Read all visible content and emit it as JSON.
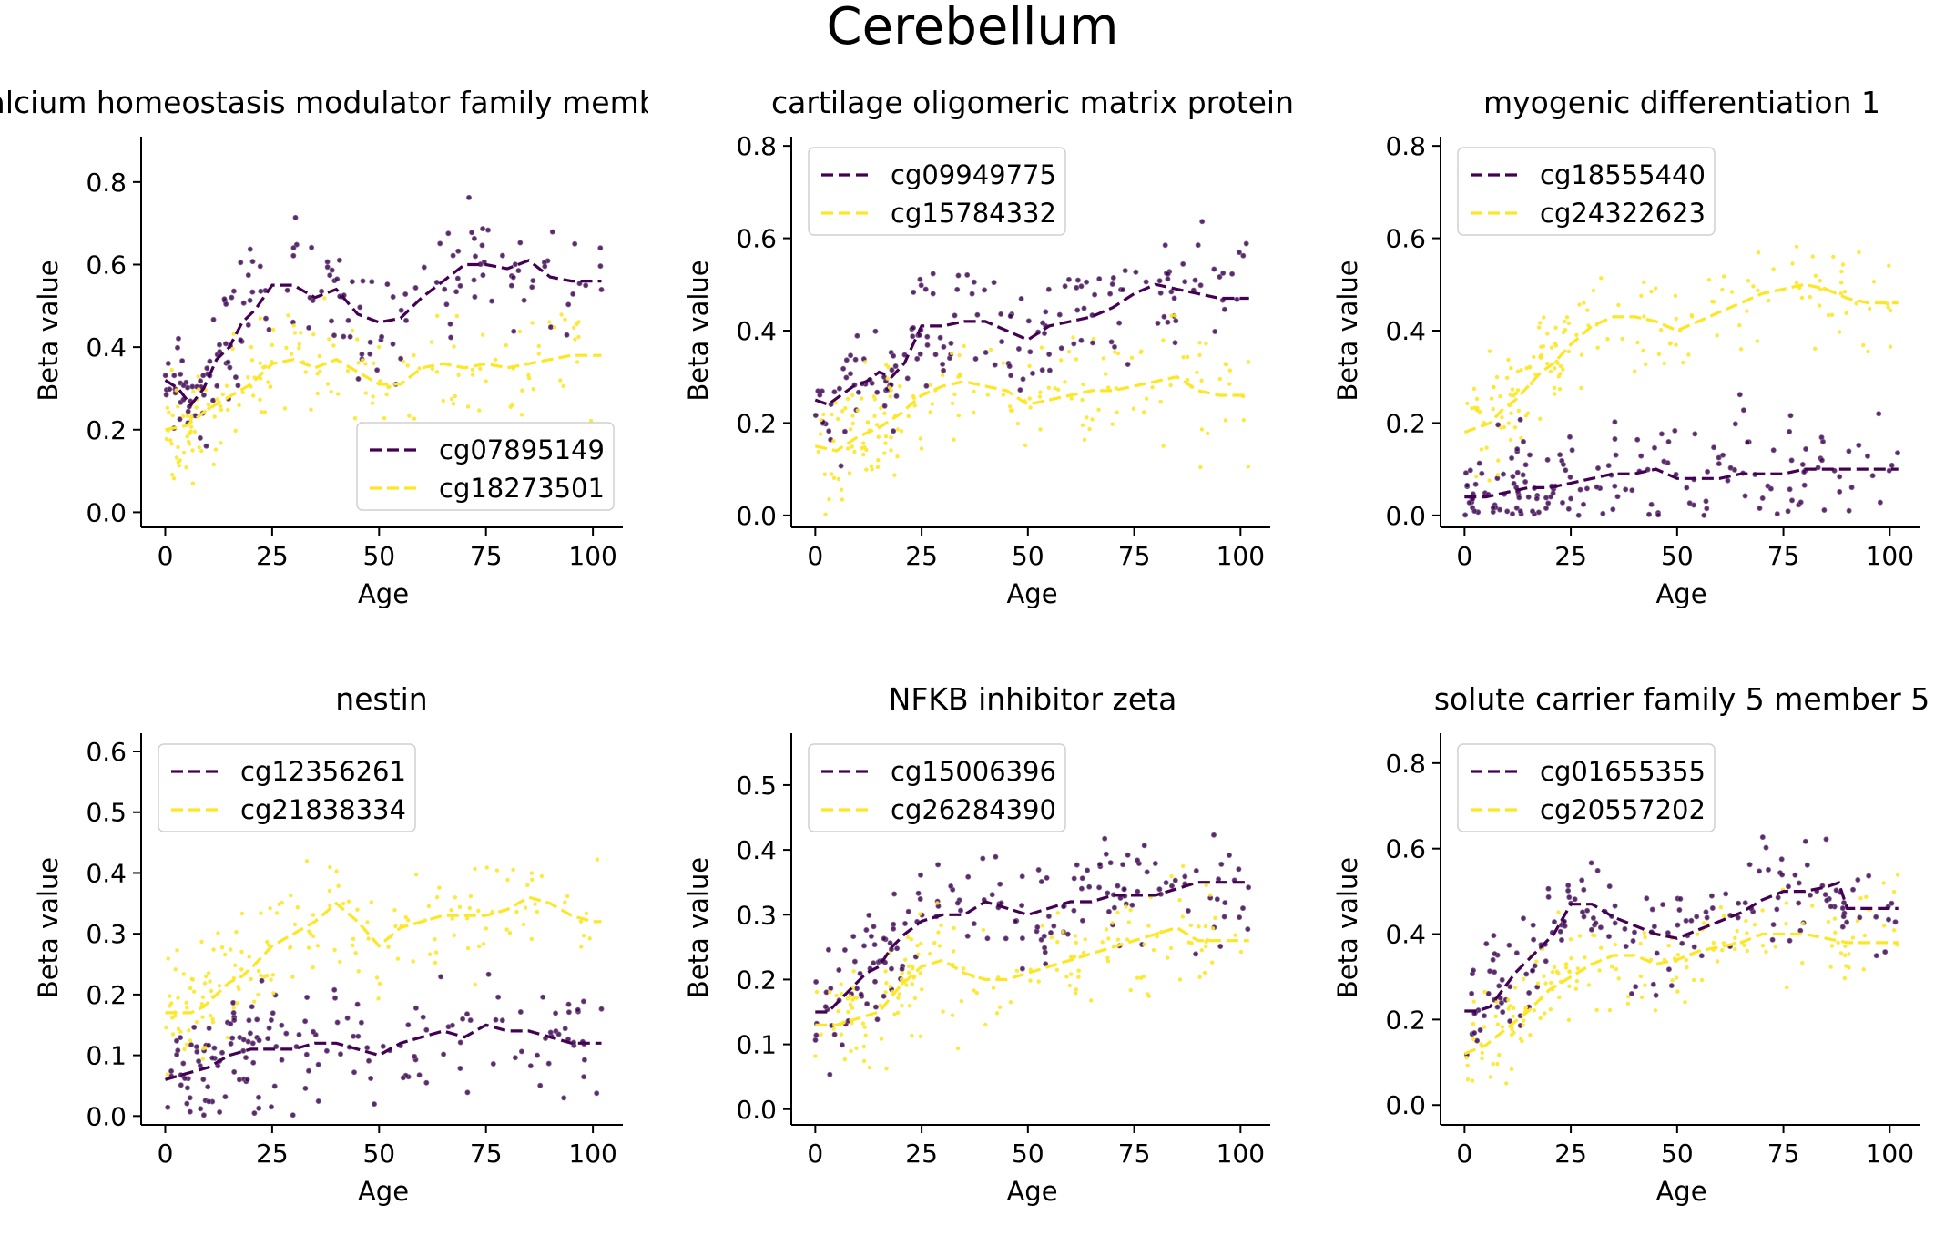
{
  "figure": {
    "title": "Cerebellum"
  },
  "colors": {
    "purple": "#440154",
    "yellow": "#fde725"
  },
  "chart_data": [
    {
      "type": "line",
      "title": "calcium homeostasis modulator family member",
      "xlabel": "Age",
      "ylabel": "Beta value",
      "xlim": [
        -5,
        107
      ],
      "ylim": [
        -0.03,
        0.91
      ],
      "xticks": [
        0,
        25,
        50,
        75,
        100
      ],
      "yticks": [
        0.0,
        0.2,
        0.4,
        0.6,
        0.8
      ],
      "legend": "lower-right",
      "series": [
        {
          "name": "cg07895149",
          "color": "#440154",
          "x": [
            0,
            3,
            6,
            9,
            12,
            15,
            18,
            21,
            25,
            30,
            35,
            40,
            45,
            50,
            55,
            60,
            65,
            70,
            75,
            80,
            85,
            90,
            95,
            100,
            102
          ],
          "y": [
            0.32,
            0.3,
            0.26,
            0.3,
            0.37,
            0.4,
            0.46,
            0.49,
            0.55,
            0.55,
            0.52,
            0.54,
            0.48,
            0.46,
            0.47,
            0.52,
            0.56,
            0.6,
            0.6,
            0.59,
            0.61,
            0.57,
            0.56,
            0.56,
            0.56
          ]
        },
        {
          "name": "cg18273501",
          "color": "#fde725",
          "x": [
            0,
            5,
            10,
            15,
            20,
            25,
            30,
            35,
            40,
            45,
            50,
            55,
            60,
            65,
            70,
            75,
            80,
            85,
            90,
            95,
            100,
            102
          ],
          "y": [
            0.2,
            0.21,
            0.25,
            0.28,
            0.31,
            0.36,
            0.37,
            0.35,
            0.37,
            0.34,
            0.31,
            0.31,
            0.35,
            0.36,
            0.35,
            0.36,
            0.35,
            0.36,
            0.37,
            0.38,
            0.38,
            0.38
          ]
        }
      ]
    },
    {
      "type": "line",
      "title": "cartilage oligomeric matrix protein",
      "xlabel": "Age",
      "ylabel": "Beta value",
      "xlim": [
        -5,
        107
      ],
      "ylim": [
        -0.02,
        0.82
      ],
      "xticks": [
        0,
        25,
        50,
        75,
        100
      ],
      "yticks": [
        0.0,
        0.2,
        0.4,
        0.6,
        0.8
      ],
      "legend": "upper-left",
      "series": [
        {
          "name": "cg09949775",
          "color": "#440154",
          "x": [
            0,
            3,
            6,
            9,
            12,
            15,
            18,
            21,
            25,
            30,
            35,
            40,
            45,
            50,
            55,
            60,
            65,
            70,
            75,
            80,
            85,
            90,
            95,
            100,
            102
          ],
          "y": [
            0.25,
            0.24,
            0.26,
            0.28,
            0.29,
            0.31,
            0.3,
            0.33,
            0.41,
            0.41,
            0.42,
            0.42,
            0.4,
            0.38,
            0.41,
            0.42,
            0.43,
            0.45,
            0.48,
            0.5,
            0.49,
            0.48,
            0.47,
            0.47,
            0.47
          ]
        },
        {
          "name": "cg15784332",
          "color": "#fde725",
          "x": [
            0,
            5,
            10,
            15,
            20,
            25,
            30,
            35,
            40,
            45,
            50,
            55,
            60,
            65,
            70,
            75,
            80,
            85,
            90,
            95,
            100,
            102
          ],
          "y": [
            0.15,
            0.14,
            0.17,
            0.19,
            0.22,
            0.26,
            0.28,
            0.29,
            0.28,
            0.27,
            0.24,
            0.25,
            0.26,
            0.27,
            0.27,
            0.28,
            0.29,
            0.3,
            0.27,
            0.26,
            0.26,
            0.26
          ]
        }
      ]
    },
    {
      "type": "line",
      "title": "myogenic differentiation 1",
      "xlabel": "Age",
      "ylabel": "Beta value",
      "xlim": [
        -5,
        107
      ],
      "ylim": [
        -0.02,
        0.82
      ],
      "xticks": [
        0,
        25,
        50,
        75,
        100
      ],
      "yticks": [
        0.0,
        0.2,
        0.4,
        0.6,
        0.8
      ],
      "legend": "upper-left",
      "series": [
        {
          "name": "cg18555440",
          "color": "#440154",
          "x": [
            0,
            5,
            10,
            15,
            20,
            25,
            30,
            35,
            40,
            45,
            50,
            55,
            60,
            65,
            70,
            75,
            80,
            85,
            90,
            95,
            100,
            102
          ],
          "y": [
            0.04,
            0.04,
            0.05,
            0.06,
            0.06,
            0.07,
            0.08,
            0.09,
            0.09,
            0.1,
            0.08,
            0.08,
            0.08,
            0.09,
            0.09,
            0.09,
            0.1,
            0.1,
            0.1,
            0.1,
            0.1,
            0.1
          ]
        },
        {
          "name": "cg24322623",
          "color": "#fde725",
          "x": [
            0,
            3,
            6,
            9,
            12,
            15,
            18,
            21,
            25,
            30,
            35,
            40,
            45,
            50,
            55,
            60,
            65,
            70,
            75,
            80,
            85,
            90,
            95,
            100,
            102
          ],
          "y": [
            0.18,
            0.19,
            0.2,
            0.23,
            0.25,
            0.28,
            0.31,
            0.33,
            0.37,
            0.41,
            0.43,
            0.43,
            0.42,
            0.4,
            0.42,
            0.44,
            0.46,
            0.48,
            0.49,
            0.5,
            0.49,
            0.47,
            0.46,
            0.46,
            0.46
          ]
        }
      ]
    },
    {
      "type": "line",
      "title": "nestin",
      "xlabel": "Age",
      "ylabel": "Beta value",
      "xlim": [
        -5,
        107
      ],
      "ylim": [
        -0.01,
        0.63
      ],
      "xticks": [
        0,
        25,
        50,
        75,
        100
      ],
      "yticks": [
        0.0,
        0.1,
        0.2,
        0.3,
        0.4,
        0.5,
        0.6
      ],
      "legend": "upper-left",
      "series": [
        {
          "name": "cg12356261",
          "color": "#440154",
          "x": [
            0,
            5,
            10,
            15,
            20,
            25,
            30,
            35,
            40,
            45,
            50,
            55,
            60,
            65,
            70,
            75,
            80,
            85,
            90,
            95,
            100,
            102
          ],
          "y": [
            0.06,
            0.07,
            0.08,
            0.1,
            0.11,
            0.11,
            0.11,
            0.12,
            0.12,
            0.11,
            0.1,
            0.12,
            0.13,
            0.14,
            0.13,
            0.15,
            0.14,
            0.14,
            0.13,
            0.12,
            0.12,
            0.12
          ]
        },
        {
          "name": "cg21838334",
          "color": "#fde725",
          "x": [
            0,
            3,
            6,
            9,
            12,
            15,
            18,
            21,
            25,
            30,
            35,
            40,
            45,
            50,
            55,
            60,
            65,
            70,
            75,
            80,
            85,
            90,
            95,
            100,
            102
          ],
          "y": [
            0.17,
            0.17,
            0.17,
            0.18,
            0.2,
            0.22,
            0.23,
            0.25,
            0.28,
            0.3,
            0.32,
            0.35,
            0.32,
            0.28,
            0.31,
            0.32,
            0.33,
            0.33,
            0.33,
            0.34,
            0.36,
            0.35,
            0.33,
            0.32,
            0.32
          ]
        }
      ]
    },
    {
      "type": "line",
      "title": "NFKB inhibitor zeta",
      "xlabel": "Age",
      "ylabel": "Beta value",
      "xlim": [
        -5,
        107
      ],
      "ylim": [
        -0.02,
        0.58
      ],
      "xticks": [
        0,
        25,
        50,
        75,
        100
      ],
      "yticks": [
        0.0,
        0.1,
        0.2,
        0.3,
        0.4,
        0.5
      ],
      "legend": "upper-left",
      "series": [
        {
          "name": "cg15006396",
          "color": "#440154",
          "x": [
            0,
            3,
            6,
            9,
            12,
            15,
            18,
            21,
            25,
            30,
            35,
            40,
            45,
            50,
            55,
            60,
            65,
            70,
            75,
            80,
            85,
            90,
            95,
            100,
            102
          ],
          "y": [
            0.15,
            0.15,
            0.17,
            0.19,
            0.21,
            0.22,
            0.25,
            0.27,
            0.29,
            0.3,
            0.3,
            0.32,
            0.31,
            0.3,
            0.31,
            0.32,
            0.32,
            0.33,
            0.33,
            0.33,
            0.34,
            0.35,
            0.35,
            0.35,
            0.35
          ]
        },
        {
          "name": "cg26284390",
          "color": "#fde725",
          "x": [
            0,
            5,
            10,
            15,
            20,
            25,
            30,
            35,
            40,
            45,
            50,
            55,
            60,
            65,
            70,
            75,
            80,
            85,
            90,
            95,
            100,
            102
          ],
          "y": [
            0.13,
            0.13,
            0.14,
            0.15,
            0.19,
            0.22,
            0.23,
            0.21,
            0.2,
            0.2,
            0.21,
            0.22,
            0.23,
            0.24,
            0.25,
            0.26,
            0.27,
            0.28,
            0.26,
            0.26,
            0.26,
            0.26
          ]
        }
      ]
    },
    {
      "type": "line",
      "title": "solute carrier family 5 member 5",
      "xlabel": "Age",
      "ylabel": "Beta value",
      "xlim": [
        -5,
        107
      ],
      "ylim": [
        -0.04,
        0.87
      ],
      "xticks": [
        0,
        25,
        50,
        75,
        100
      ],
      "yticks": [
        0.0,
        0.2,
        0.4,
        0.6,
        0.8
      ],
      "legend": "upper-left",
      "series": [
        {
          "name": "cg01655355",
          "color": "#440154",
          "x": [
            0,
            3,
            6,
            9,
            12,
            15,
            18,
            21,
            25,
            30,
            35,
            40,
            45,
            50,
            55,
            60,
            65,
            70,
            75,
            80,
            85,
            88,
            90,
            95,
            100,
            102
          ],
          "y": [
            0.22,
            0.22,
            0.23,
            0.27,
            0.31,
            0.34,
            0.37,
            0.4,
            0.47,
            0.47,
            0.44,
            0.42,
            0.4,
            0.39,
            0.41,
            0.43,
            0.45,
            0.48,
            0.5,
            0.5,
            0.51,
            0.52,
            0.46,
            0.46,
            0.46,
            0.46
          ]
        },
        {
          "name": "cg20557202",
          "color": "#fde725",
          "x": [
            0,
            5,
            10,
            15,
            20,
            25,
            30,
            35,
            40,
            45,
            50,
            55,
            60,
            65,
            70,
            75,
            80,
            85,
            90,
            95,
            100,
            102
          ],
          "y": [
            0.12,
            0.14,
            0.18,
            0.22,
            0.27,
            0.3,
            0.33,
            0.35,
            0.35,
            0.33,
            0.34,
            0.36,
            0.37,
            0.38,
            0.4,
            0.4,
            0.4,
            0.39,
            0.38,
            0.38,
            0.38,
            0.38
          ]
        }
      ]
    }
  ]
}
